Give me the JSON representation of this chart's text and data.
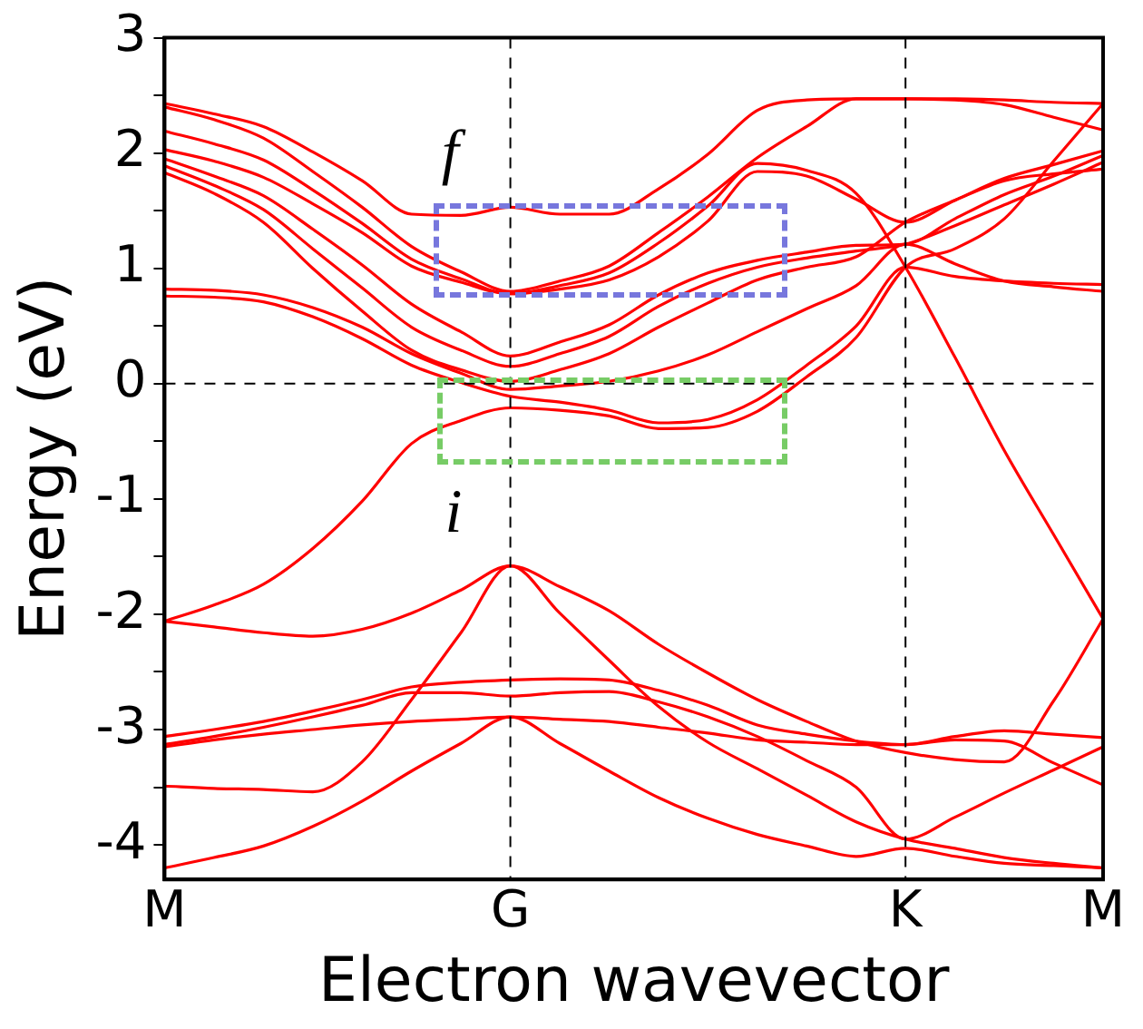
{
  "chart_data": {
    "type": "line",
    "xlabel": "Electron wavevector",
    "ylabel": "Energy (eV)",
    "categories": [
      "M",
      null,
      null,
      null,
      null,
      null,
      null,
      "G",
      null,
      null,
      null,
      null,
      null,
      null,
      null,
      "K",
      null,
      null,
      null,
      "M"
    ],
    "ylim": [
      -4.3,
      3
    ],
    "yticks": [
      -4,
      {
        "value": -3.5,
        "label": null
      },
      -3,
      {
        "value": -2.5,
        "label": null
      },
      -2,
      {
        "value": -1.5,
        "label": null
      },
      -1,
      {
        "value": -0.5,
        "label": null
      },
      0,
      {
        "value": 0.5,
        "label": null
      },
      1,
      {
        "value": 1.5,
        "label": null
      },
      2,
      {
        "value": 2.5,
        "label": null
      },
      3
    ],
    "grid": false,
    "legend": false,
    "marker": "none",
    "line_style": "solid",
    "series": [
      {
        "color": "#ff0000",
        "values": [
          2.43,
          2.34,
          2.23,
          2.01,
          1.76,
          1.47,
          1.46,
          1.53,
          1.47,
          1.47,
          1.69,
          1.99,
          2.37,
          2.46,
          2.47,
          2.47,
          2.47,
          2.46,
          2.44,
          2.43
        ]
      },
      {
        "color": "#ff0000",
        "values": [
          2.4,
          2.29,
          2.13,
          1.84,
          1.53,
          1.19,
          0.97,
          0.8,
          0.89,
          1.02,
          1.31,
          1.62,
          1.96,
          2.23,
          2.47,
          2.47,
          2.46,
          2.42,
          2.31,
          2.2
        ]
      },
      {
        "color": "#ff0000",
        "values": [
          2.19,
          2.08,
          1.94,
          1.68,
          1.39,
          1.08,
          0.91,
          0.78,
          0.85,
          0.96,
          1.22,
          1.54,
          1.91,
          1.85,
          1.65,
          1.01,
          0.23,
          -0.58,
          -1.31,
          -2.04
        ]
      },
      {
        "color": "#ff0000",
        "values": [
          2.03,
          1.93,
          1.79,
          1.56,
          1.31,
          1.02,
          0.88,
          0.78,
          0.82,
          0.9,
          1.1,
          1.41,
          1.84,
          1.8,
          1.6,
          1.4,
          1.59,
          1.78,
          1.9,
          2.02
        ]
      },
      {
        "color": "#ff0000",
        "values": [
          1.95,
          1.8,
          1.63,
          1.34,
          1.03,
          0.69,
          0.45,
          0.24,
          0.36,
          0.51,
          0.77,
          0.96,
          1.07,
          1.14,
          1.2,
          1.21,
          1.43,
          1.64,
          1.8,
          1.98
        ]
      },
      {
        "color": "#ff0000",
        "values": [
          1.89,
          1.72,
          1.51,
          1.17,
          0.83,
          0.49,
          0.29,
          0.15,
          0.26,
          0.41,
          0.67,
          0.87,
          1.01,
          1.09,
          1.15,
          1.21,
          1.37,
          1.55,
          1.73,
          1.92
        ]
      },
      {
        "color": "#ff0000",
        "values": [
          1.83,
          1.65,
          1.4,
          1.0,
          0.63,
          0.29,
          0.12,
          0.02,
          0.12,
          0.26,
          0.49,
          0.7,
          0.9,
          1.01,
          1.1,
          1.4,
          1.59,
          1.76,
          1.82,
          1.86
        ]
      },
      {
        "color": "#ff0000",
        "values": [
          0.82,
          0.81,
          0.77,
          0.66,
          0.49,
          0.26,
          0.09,
          -0.05,
          -0.02,
          0.02,
          0.11,
          0.25,
          0.45,
          0.65,
          0.85,
          1.21,
          1.04,
          0.89,
          0.84,
          0.8
        ]
      },
      {
        "color": "#ff0000",
        "values": [
          0.76,
          0.75,
          0.71,
          0.58,
          0.39,
          0.16,
          0.01,
          -0.11,
          -0.16,
          -0.23,
          -0.34,
          -0.31,
          -0.14,
          0.16,
          0.5,
          1.01,
          0.93,
          0.89,
          0.87,
          0.86
        ]
      },
      {
        "color": "#ff0000",
        "values": [
          -2.06,
          -1.92,
          -1.74,
          -1.43,
          -1.02,
          -0.52,
          -0.32,
          -0.21,
          -0.23,
          -0.28,
          -0.39,
          -0.38,
          -0.24,
          0.06,
          0.4,
          1.01,
          1.17,
          1.43,
          1.93,
          2.43
        ]
      },
      {
        "color": "#ff0000",
        "values": [
          -2.06,
          -2.11,
          -2.16,
          -2.19,
          -2.13,
          -1.99,
          -1.79,
          -1.58,
          -1.76,
          -1.97,
          -2.26,
          -2.51,
          -2.74,
          -2.93,
          -3.1,
          -3.2,
          -3.26,
          -3.28,
          -2.75,
          -2.04
        ]
      },
      {
        "color": "#ff0000",
        "values": [
          -3.49,
          -3.51,
          -3.52,
          -3.54,
          -3.28,
          -2.74,
          -2.16,
          -1.58,
          -1.99,
          -2.4,
          -2.8,
          -3.11,
          -3.34,
          -3.57,
          -3.8,
          -3.95,
          -4.03,
          -4.11,
          -4.16,
          -4.2
        ]
      },
      {
        "color": "#ff0000",
        "values": [
          -3.06,
          -3.0,
          -2.93,
          -2.84,
          -2.74,
          -2.63,
          -2.59,
          -2.57,
          -2.56,
          -2.57,
          -2.66,
          -2.79,
          -2.96,
          -3.04,
          -3.1,
          -3.13,
          -3.06,
          -3.01,
          -3.04,
          -3.07
        ]
      },
      {
        "color": "#ff0000",
        "values": [
          -3.13,
          -3.06,
          -2.98,
          -2.89,
          -2.79,
          -2.68,
          -2.68,
          -2.71,
          -2.68,
          -2.67,
          -2.76,
          -2.89,
          -3.06,
          -3.27,
          -3.5,
          -3.95,
          -3.76,
          -3.55,
          -3.35,
          -3.15
        ]
      },
      {
        "color": "#ff0000",
        "values": [
          -3.15,
          -3.09,
          -3.04,
          -3.0,
          -2.96,
          -2.93,
          -2.91,
          -2.89,
          -2.91,
          -2.93,
          -2.98,
          -3.03,
          -3.09,
          -3.11,
          -3.13,
          -3.13,
          -3.09,
          -3.1,
          -3.29,
          -3.48
        ]
      },
      {
        "color": "#ff0000",
        "values": [
          -4.2,
          -4.11,
          -4.01,
          -3.84,
          -3.62,
          -3.36,
          -3.12,
          -2.89,
          -3.12,
          -3.36,
          -3.59,
          -3.77,
          -3.91,
          -4.01,
          -4.1,
          -4.03,
          -4.1,
          -4.16,
          -4.18,
          -4.2
        ]
      }
    ],
    "ref_lines": [
      {
        "axis": "x",
        "value": "G",
        "color": "#000000",
        "line_style": "dashed"
      },
      {
        "axis": "x",
        "value": "K",
        "color": "#000000",
        "line_style": "dashed"
      },
      {
        "axis": "y",
        "value": 0,
        "color": "#000000",
        "line_style": "dashed"
      }
    ],
    "annotations": [
      "f",
      "i"
    ]
  }
}
